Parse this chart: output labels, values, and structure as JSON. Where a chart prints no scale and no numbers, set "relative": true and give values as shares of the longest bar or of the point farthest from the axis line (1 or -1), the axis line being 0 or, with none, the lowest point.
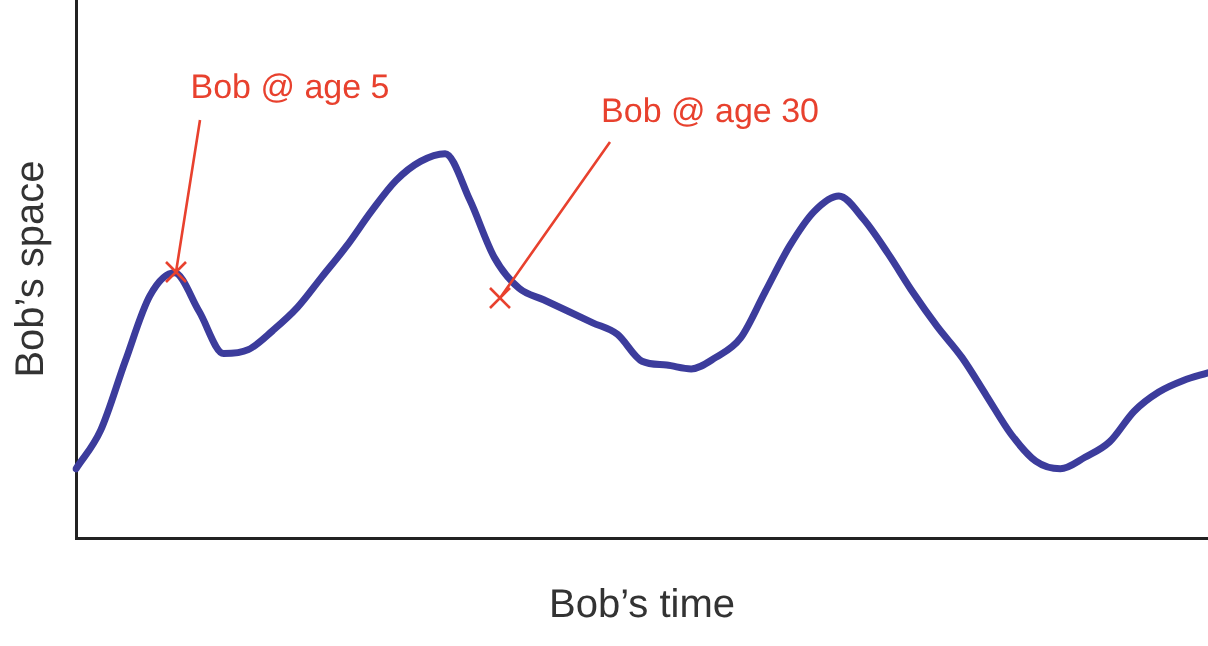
{
  "chart_data": {
    "type": "line",
    "relative": true,
    "xlabel": "Bob’s time",
    "ylabel": "Bob’s space",
    "color": "#3c3c9c",
    "marker": "none",
    "grid": false,
    "legend": false,
    "categories": [
      null,
      null,
      null,
      null,
      null,
      null,
      null,
      null,
      null,
      null,
      null,
      null,
      null,
      null,
      null,
      null,
      null,
      null,
      null,
      null,
      null,
      null,
      null,
      null,
      null,
      null,
      null,
      null,
      null,
      null,
      null,
      null,
      null,
      null,
      null,
      null,
      null,
      null,
      null,
      null,
      null,
      null,
      null,
      null,
      null,
      null,
      null
    ],
    "values": [
      0.18,
      0.28,
      0.46,
      0.63,
      0.69,
      0.59,
      0.48,
      0.49,
      0.54,
      0.6,
      0.68,
      0.76,
      0.85,
      0.93,
      0.98,
      1.0,
      0.88,
      0.73,
      0.65,
      0.62,
      0.59,
      0.56,
      0.53,
      0.46,
      0.45,
      0.44,
      0.47,
      0.52,
      0.64,
      0.76,
      0.85,
      0.89,
      0.83,
      0.74,
      0.64,
      0.55,
      0.47,
      0.37,
      0.27,
      0.2,
      0.18,
      0.21,
      0.25,
      0.33,
      0.38,
      0.41,
      0.43
    ],
    "annotations": [
      "Bob @ age 5",
      "Bob @ age 30"
    ]
  }
}
